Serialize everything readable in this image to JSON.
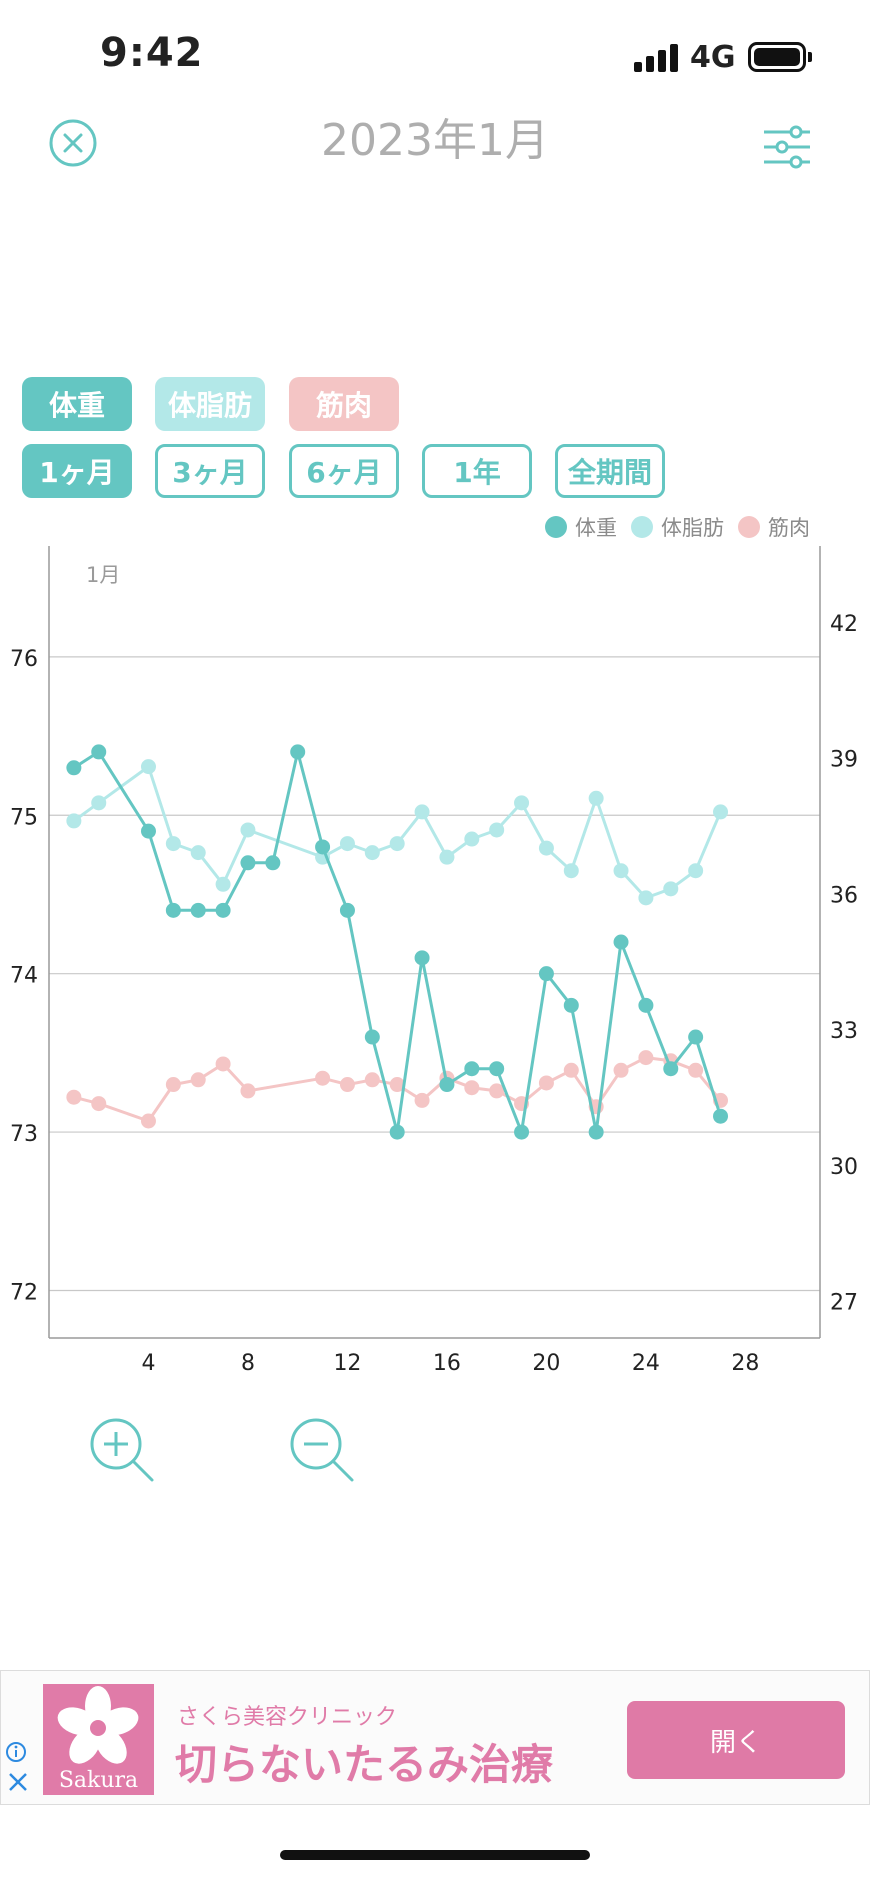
{
  "status_bar": {
    "time": "9:42",
    "network": "4G"
  },
  "header": {
    "title": "2023年1月"
  },
  "metric_tabs": [
    {
      "label": "体重"
    },
    {
      "label": "体脂肪"
    },
    {
      "label": "筋肉"
    }
  ],
  "period_tabs": [
    {
      "label": "1ヶ月",
      "active": true
    },
    {
      "label": "3ヶ月",
      "active": false
    },
    {
      "label": "6ヶ月",
      "active": false
    },
    {
      "label": "1年",
      "active": false
    },
    {
      "label": "全期間",
      "active": false
    }
  ],
  "legend": [
    {
      "label": "体重",
      "color": "#64c6c2"
    },
    {
      "label": "体脂肪",
      "color": "#b3e8e8"
    },
    {
      "label": "筋肉",
      "color": "#f4c5c5"
    }
  ],
  "chart_data": {
    "type": "line",
    "month_label": "1月",
    "xlim": [
      0,
      31
    ],
    "x_ticks": [
      4,
      8,
      12,
      16,
      20,
      24,
      28
    ],
    "y_left": {
      "lim": [
        71.7,
        76.7
      ],
      "ticks": [
        72,
        73,
        74,
        75,
        76
      ]
    },
    "y_right": {
      "lim": [
        26.175,
        43.675
      ],
      "ticks": [
        27,
        30,
        33,
        36,
        39,
        42
      ]
    },
    "grid": true,
    "legend_position": "top-right",
    "series": [
      {
        "name": "体重",
        "axis": "left",
        "color": "#64c6c2",
        "x": [
          1,
          2,
          4,
          5,
          6,
          7,
          8,
          9,
          10,
          11,
          12,
          13,
          14,
          15,
          16,
          17,
          18,
          19,
          20,
          21,
          22,
          23,
          24,
          25,
          26,
          27
        ],
        "y": [
          75.3,
          75.4,
          74.9,
          74.4,
          74.4,
          74.4,
          74.7,
          74.7,
          75.4,
          74.8,
          74.4,
          73.6,
          73.0,
          74.1,
          73.3,
          73.4,
          73.4,
          73.0,
          74.0,
          73.8,
          73.0,
          74.2,
          73.8,
          73.4,
          73.6,
          73.1
        ]
      },
      {
        "name": "体脂肪",
        "axis": "right",
        "color": "#b3e8e8",
        "x": [
          1,
          2,
          4,
          5,
          6,
          7,
          8,
          11,
          12,
          13,
          14,
          15,
          16,
          17,
          18,
          19,
          20,
          21,
          22,
          23,
          24,
          25,
          26,
          27
        ],
        "y": [
          37.6,
          38.0,
          38.8,
          37.1,
          36.9,
          36.2,
          37.4,
          36.8,
          37.1,
          36.9,
          37.1,
          37.8,
          36.8,
          37.2,
          37.4,
          38.0,
          37.0,
          36.5,
          38.1,
          36.5,
          35.9,
          36.1,
          36.5,
          37.8
        ]
      },
      {
        "name": "筋肉",
        "axis": "left",
        "color": "#f4c5c5",
        "x": [
          1,
          2,
          4,
          5,
          6,
          7,
          8,
          11,
          12,
          13,
          14,
          15,
          16,
          17,
          18,
          19,
          20,
          21,
          22,
          23,
          24,
          25,
          26,
          27
        ],
        "y": [
          73.22,
          73.18,
          73.07,
          73.3,
          73.33,
          73.43,
          73.26,
          73.34,
          73.3,
          73.33,
          73.3,
          73.2,
          73.34,
          73.28,
          73.26,
          73.18,
          73.31,
          73.39,
          73.16,
          73.39,
          73.47,
          73.45,
          73.39,
          73.2
        ]
      }
    ]
  },
  "ad": {
    "subtitle": "さくら美容クリニック",
    "headline": "切らないたるみ治療",
    "logo_text": "Sakura",
    "button_label": "開く",
    "brand_color": "#e07ba8"
  }
}
